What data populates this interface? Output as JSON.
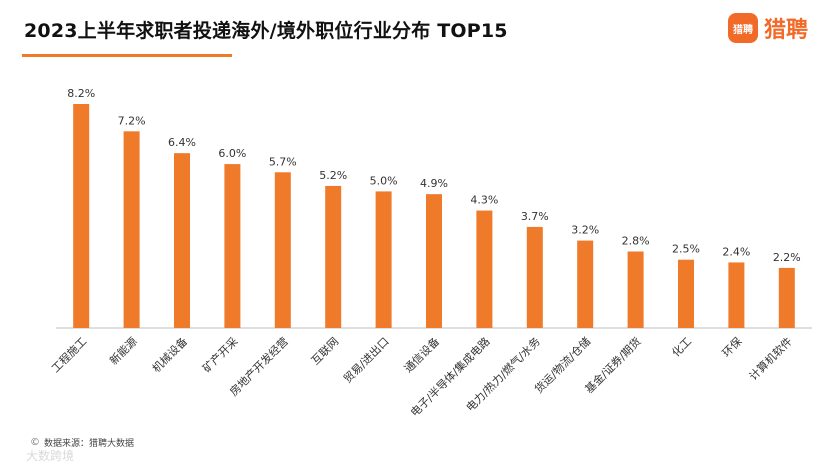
{
  "header": {
    "title": "2023上半年求职者投递海外/境外职位行业分布 TOP15",
    "logo_icon": "猎聘",
    "logo_text": "猎聘",
    "accent_color": "#ee7a2a"
  },
  "footer": {
    "source": "数据来源：猎聘大数据",
    "watermark": "大数跨境"
  },
  "chart_data": {
    "type": "bar",
    "title": "2023上半年求职者投递海外/境外职位行业分布 TOP15",
    "xlabel": "",
    "ylabel": "",
    "ylim": [
      0,
      8.2
    ],
    "grid": false,
    "categories": [
      "工程施工",
      "新能源",
      "机械设备",
      "矿产开采",
      "房地产开发经营",
      "互联网",
      "贸易/进出口",
      "通信设备",
      "电子/半导体/集成电路",
      "电力/热力/燃气/水务",
      "货运/物流/仓储",
      "基金/证券/期货",
      "化工",
      "环保",
      "计算机软件"
    ],
    "values": [
      8.2,
      7.2,
      6.4,
      6.0,
      5.7,
      5.2,
      5.0,
      4.9,
      4.3,
      3.7,
      3.2,
      2.8,
      2.5,
      2.4,
      2.2
    ],
    "labels": [
      "8.2%",
      "7.2%",
      "6.4%",
      "6.0%",
      "5.7%",
      "5.2%",
      "5.0%",
      "4.9%",
      "4.3%",
      "3.7%",
      "3.2%",
      "2.8%",
      "2.5%",
      "2.4%",
      "2.2%"
    ],
    "bar_color": "#ee7a2a"
  }
}
